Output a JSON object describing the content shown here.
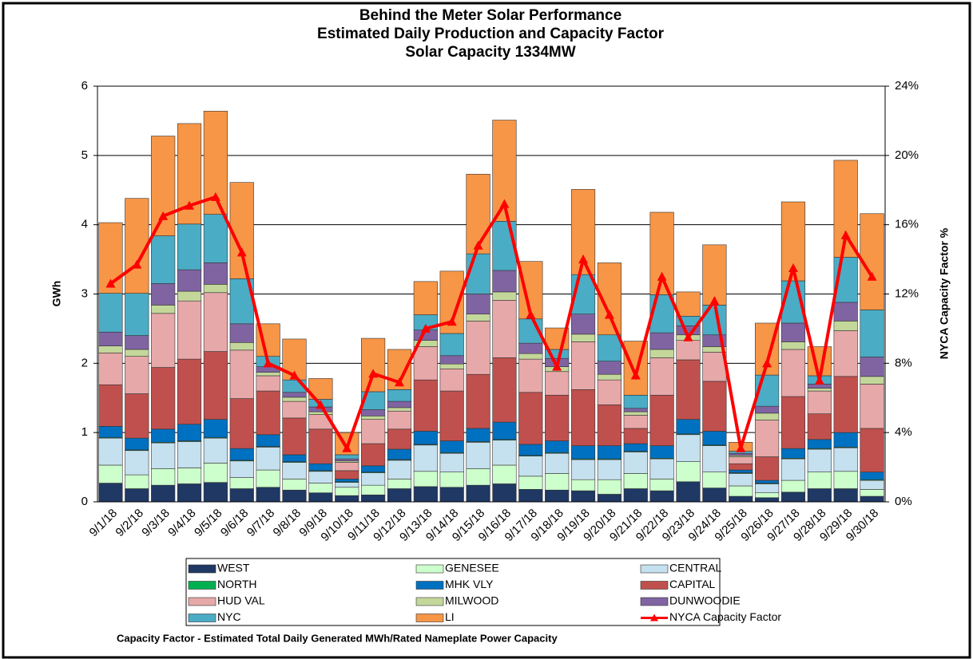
{
  "chart_data": {
    "type": "bar",
    "stacked": true,
    "title_lines": [
      "Behind the Meter Solar Performance",
      "Estimated Daily Production and Capacity Factor",
      "Solar Capacity 1334MW"
    ],
    "ylabel": "GWh",
    "y2label": "NYCA Capacity Factor %",
    "note": "Capacity Factor  - Estimated Total Daily Generated MWh/Rated Nameplate Power Capacity",
    "categories": [
      "9/1/18",
      "9/2/18",
      "9/3/18",
      "9/4/18",
      "9/5/18",
      "9/6/18",
      "9/7/18",
      "9/8/18",
      "9/9/18",
      "9/10/18",
      "9/11/18",
      "9/12/18",
      "9/13/18",
      "9/14/18",
      "9/15/18",
      "9/16/18",
      "9/17/18",
      "9/18/18",
      "9/19/18",
      "9/20/18",
      "9/21/18",
      "9/22/18",
      "9/23/18",
      "9/24/18",
      "9/25/18",
      "9/26/18",
      "9/27/18",
      "9/28/18",
      "9/29/18",
      "9/30/18"
    ],
    "ylim": [
      0,
      6
    ],
    "yticks": [
      0,
      1,
      2,
      3,
      4,
      5,
      6
    ],
    "y2lim": [
      0,
      24
    ],
    "y2ticks": [
      {
        "value": 0,
        "label": "0%"
      },
      {
        "value": 4,
        "label": "4%"
      },
      {
        "value": 8,
        "label": "8%"
      },
      {
        "value": 12,
        "label": "12%"
      },
      {
        "value": 16,
        "label": "16%"
      },
      {
        "value": 20,
        "label": "20%"
      },
      {
        "value": 24,
        "label": "24%"
      }
    ],
    "grid": true,
    "series": [
      {
        "name": "WEST",
        "color": "#1f3864",
        "values": [
          0.27,
          0.19,
          0.24,
          0.26,
          0.28,
          0.19,
          0.21,
          0.17,
          0.13,
          0.09,
          0.1,
          0.19,
          0.22,
          0.21,
          0.24,
          0.26,
          0.18,
          0.17,
          0.16,
          0.11,
          0.19,
          0.16,
          0.29,
          0.2,
          0.08,
          0.06,
          0.14,
          0.19,
          0.19,
          0.08
        ]
      },
      {
        "name": "GENESEE",
        "color": "#ccffcc",
        "values": [
          0.26,
          0.2,
          0.24,
          0.23,
          0.28,
          0.16,
          0.25,
          0.16,
          0.14,
          0.12,
          0.14,
          0.14,
          0.22,
          0.22,
          0.24,
          0.27,
          0.19,
          0.24,
          0.16,
          0.21,
          0.22,
          0.17,
          0.29,
          0.23,
          0.15,
          0.07,
          0.17,
          0.24,
          0.25,
          0.1
        ]
      },
      {
        "name": "CENTRAL",
        "color": "#c5e0ee",
        "values": [
          0.39,
          0.35,
          0.37,
          0.38,
          0.36,
          0.24,
          0.33,
          0.24,
          0.17,
          0.07,
          0.18,
          0.27,
          0.38,
          0.27,
          0.38,
          0.36,
          0.29,
          0.29,
          0.29,
          0.29,
          0.31,
          0.29,
          0.39,
          0.38,
          0.18,
          0.13,
          0.31,
          0.33,
          0.34,
          0.13
        ]
      },
      {
        "name": "NORTH",
        "color": "#00b050",
        "values": [
          0.01,
          0.01,
          0.01,
          0.01,
          0.01,
          0.01,
          0.01,
          0.01,
          0.01,
          0.01,
          0.01,
          0.01,
          0.01,
          0.01,
          0.01,
          0.01,
          0.01,
          0.01,
          0.01,
          0.01,
          0.01,
          0.01,
          0.01,
          0.01,
          0.01,
          0.01,
          0.01,
          0.01,
          0.01,
          0.01
        ]
      },
      {
        "name": "MHK VLY",
        "color": "#0070c0",
        "values": [
          0.16,
          0.17,
          0.19,
          0.24,
          0.26,
          0.17,
          0.17,
          0.1,
          0.1,
          0.04,
          0.09,
          0.15,
          0.19,
          0.17,
          0.19,
          0.25,
          0.16,
          0.17,
          0.19,
          0.19,
          0.11,
          0.18,
          0.21,
          0.2,
          0.04,
          0.04,
          0.14,
          0.13,
          0.21,
          0.11
        ]
      },
      {
        "name": "CAPITAL",
        "color": "#c0504d",
        "values": [
          0.6,
          0.64,
          0.89,
          0.94,
          0.98,
          0.72,
          0.63,
          0.53,
          0.5,
          0.12,
          0.32,
          0.29,
          0.74,
          0.72,
          0.78,
          0.93,
          0.75,
          0.66,
          0.81,
          0.59,
          0.22,
          0.73,
          0.86,
          0.72,
          0.09,
          0.34,
          0.75,
          0.37,
          0.81,
          0.63
        ]
      },
      {
        "name": "HUD VAL",
        "color": "#e6a8a8",
        "values": [
          0.46,
          0.54,
          0.78,
          0.84,
          0.85,
          0.7,
          0.22,
          0.24,
          0.21,
          0.12,
          0.35,
          0.26,
          0.48,
          0.32,
          0.77,
          0.83,
          0.48,
          0.34,
          0.69,
          0.36,
          0.19,
          0.54,
          0.28,
          0.42,
          0.1,
          0.53,
          0.68,
          0.33,
          0.66,
          0.64
        ]
      },
      {
        "name": "MILWOOD",
        "color": "#c4d79b",
        "values": [
          0.1,
          0.1,
          0.12,
          0.14,
          0.12,
          0.11,
          0.05,
          0.06,
          0.04,
          0.02,
          0.05,
          0.05,
          0.09,
          0.07,
          0.1,
          0.12,
          0.08,
          0.07,
          0.11,
          0.08,
          0.05,
          0.12,
          0.08,
          0.08,
          0.02,
          0.1,
          0.11,
          0.04,
          0.14,
          0.11
        ]
      },
      {
        "name": "DUNWOODIE",
        "color": "#8064a2",
        "values": [
          0.2,
          0.2,
          0.31,
          0.31,
          0.31,
          0.27,
          0.08,
          0.07,
          0.07,
          0.03,
          0.09,
          0.09,
          0.15,
          0.12,
          0.29,
          0.31,
          0.15,
          0.12,
          0.29,
          0.19,
          0.05,
          0.24,
          0.13,
          0.17,
          0.03,
          0.1,
          0.27,
          0.06,
          0.27,
          0.28
        ]
      },
      {
        "name": "NYC",
        "color": "#4bacc6",
        "values": [
          0.56,
          0.61,
          0.69,
          0.66,
          0.7,
          0.65,
          0.15,
          0.18,
          0.11,
          0.06,
          0.26,
          0.17,
          0.22,
          0.32,
          0.58,
          0.71,
          0.35,
          0.13,
          0.57,
          0.38,
          0.19,
          0.55,
          0.14,
          0.43,
          0.03,
          0.45,
          0.61,
          0.12,
          0.65,
          0.68
        ]
      },
      {
        "name": "LI",
        "color": "#f79646",
        "values": [
          1.02,
          1.37,
          1.44,
          1.45,
          1.49,
          1.39,
          0.47,
          0.59,
          0.3,
          0.32,
          0.77,
          0.58,
          0.48,
          0.9,
          1.15,
          1.46,
          0.83,
          0.31,
          1.23,
          1.04,
          0.78,
          1.19,
          0.35,
          0.87,
          0.13,
          0.75,
          1.14,
          0.42,
          1.4,
          1.39
        ]
      },
      {
        "name": "NYCA Capacity Factor",
        "color": "#ff0000",
        "type": "line",
        "axis": "y2",
        "values": [
          12.6,
          13.7,
          16.5,
          17.1,
          17.6,
          14.4,
          8.0,
          7.3,
          5.6,
          3.1,
          7.4,
          6.9,
          10.0,
          10.4,
          14.8,
          17.2,
          10.8,
          7.8,
          14.0,
          10.8,
          7.3,
          13.0,
          9.5,
          11.6,
          3.1,
          8.0,
          13.5,
          7.0,
          15.4,
          13.0
        ]
      }
    ]
  }
}
